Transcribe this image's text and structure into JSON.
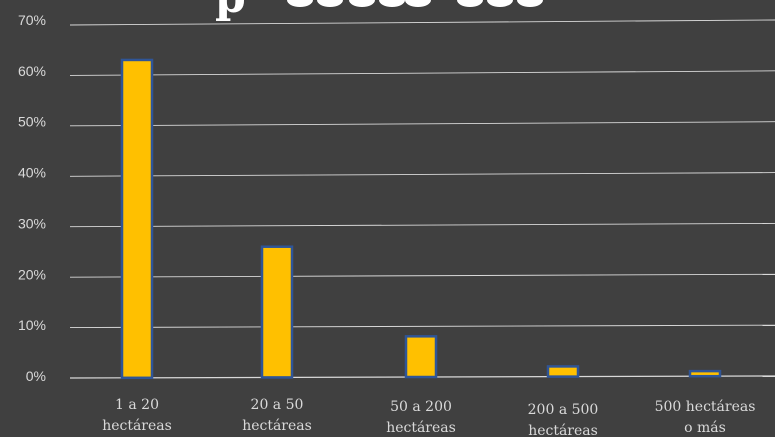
{
  "chart_data": {
    "type": "bar",
    "title_visible_fragment": "p",
    "categories": [
      [
        "1 a 20",
        "hectáreas"
      ],
      [
        "20 a 50",
        "hectáreas"
      ],
      [
        "50 a 200",
        "hectáreas"
      ],
      [
        "200 a 500",
        "hectáreas"
      ],
      [
        "500 hectáreas",
        "o más"
      ]
    ],
    "values": [
      62.5,
      25.7,
      8.0,
      2.0,
      1.0
    ],
    "ylim": [
      0,
      70
    ],
    "y_ticks": [
      0,
      10,
      20,
      30,
      40,
      50,
      60,
      70
    ],
    "y_tick_labels": [
      "0%",
      "10%",
      "20%",
      "30%",
      "40%",
      "50%",
      "60%",
      "70%"
    ],
    "grid": true,
    "colors": {
      "background": "#404040",
      "bar_fill": "#ffc000",
      "bar_stroke": "#2f5597",
      "grid": "#d9d9d9",
      "text": "#d9d9d9"
    }
  }
}
